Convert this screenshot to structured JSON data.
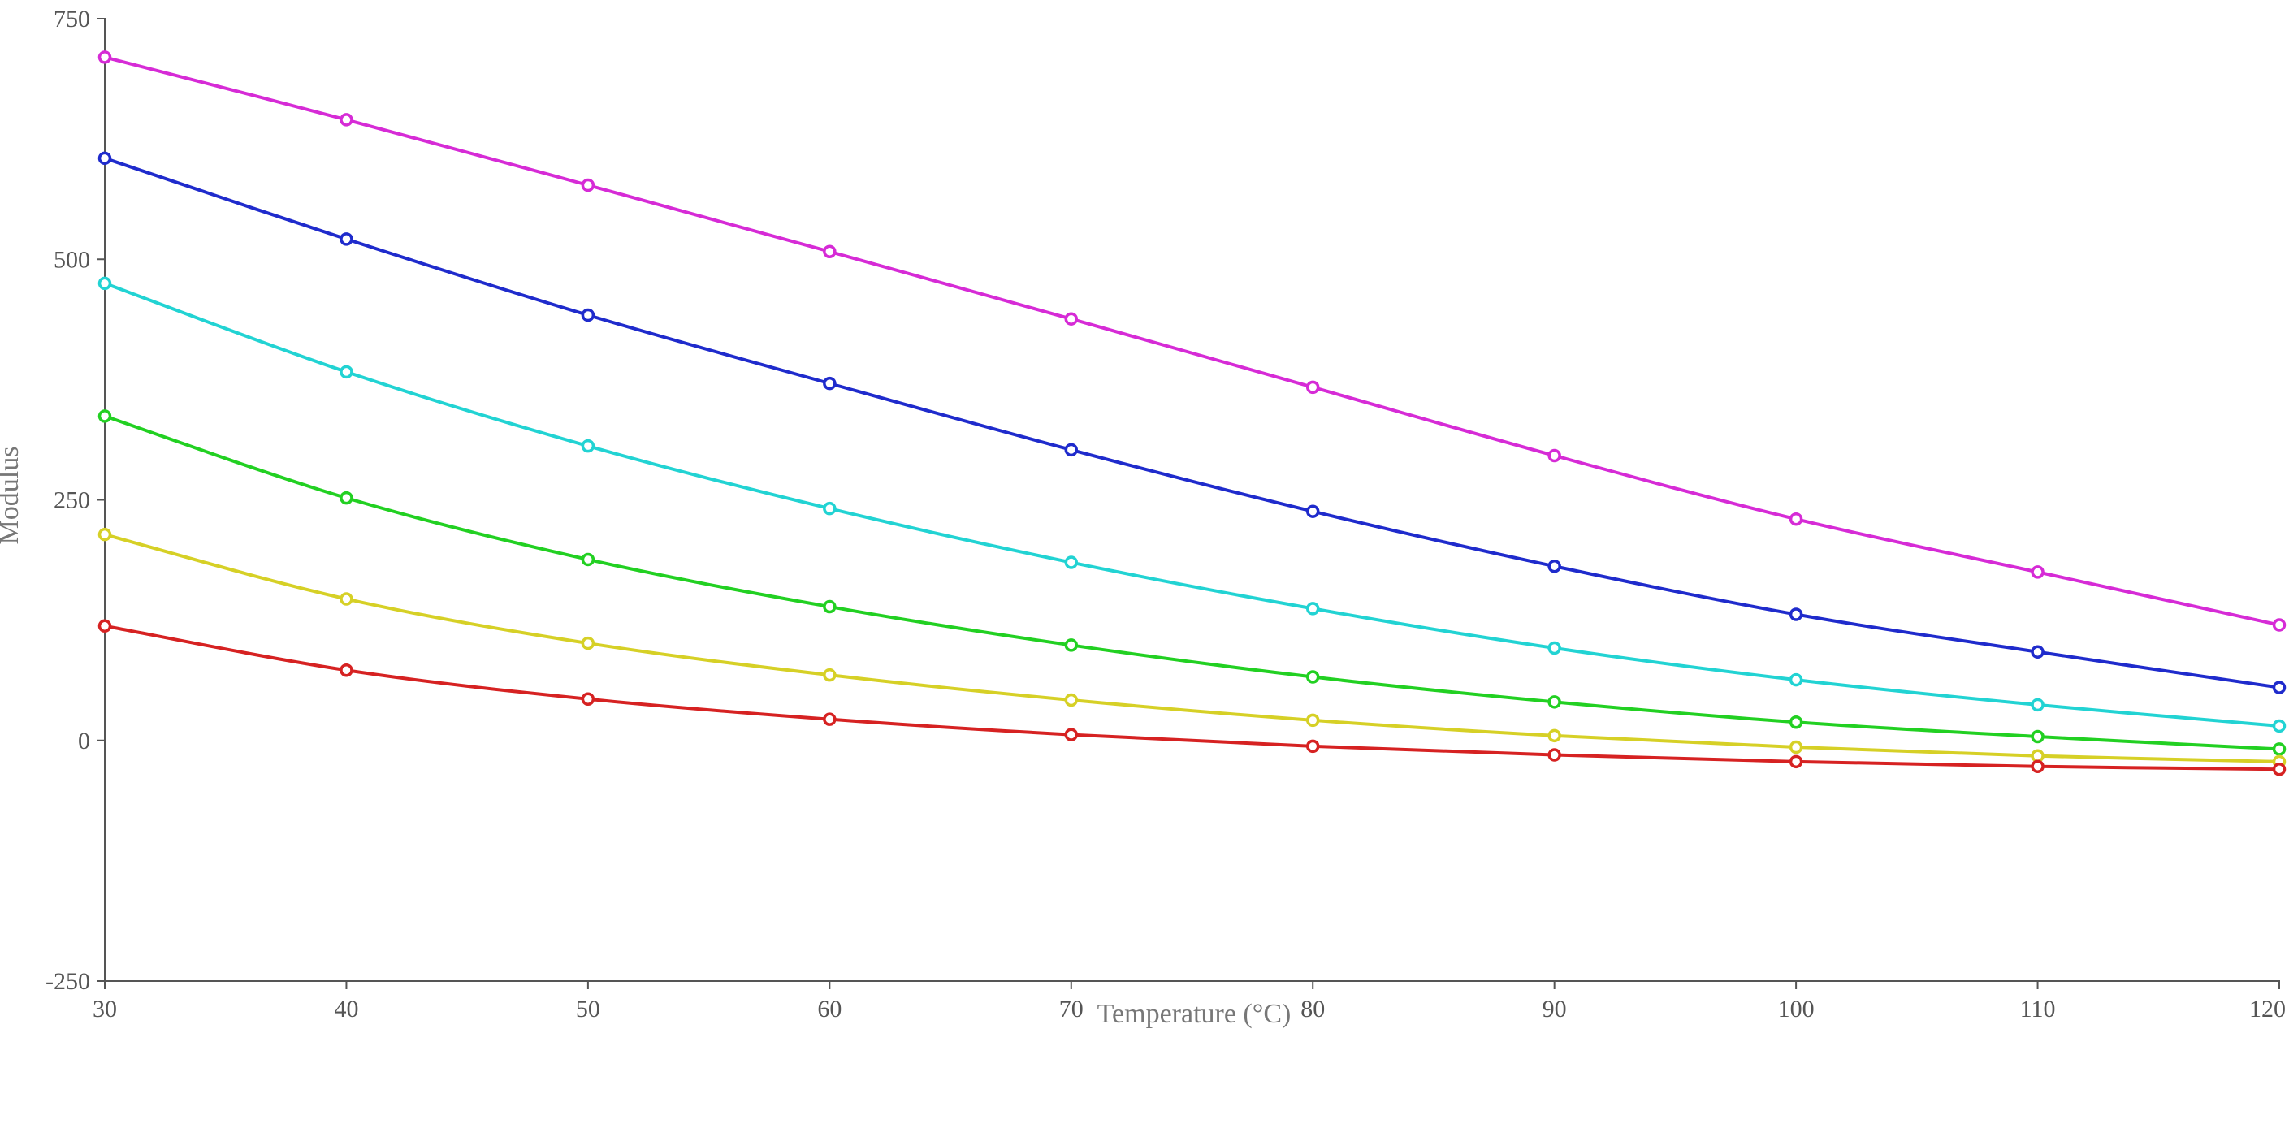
{
  "chart_data": {
    "type": "line",
    "title": "",
    "xlabel": "Temperature (°C)",
    "ylabel": "Modulus",
    "xlim": [
      30,
      120
    ],
    "ylim": [
      -250,
      750
    ],
    "x_ticks": [
      "30",
      "40",
      "50",
      "60",
      "70",
      "80",
      "90",
      "100",
      "110",
      "120"
    ],
    "y_ticks": [
      "750",
      "500",
      "250",
      "0",
      "-250"
    ],
    "x_tick_values": [
      30,
      40,
      50,
      60,
      70,
      80,
      90,
      100,
      110,
      120
    ],
    "y_tick_values": [
      750,
      500,
      250,
      0,
      -250
    ],
    "grid": false,
    "legend": "none",
    "x": [
      30,
      40,
      50,
      60,
      70,
      80,
      90,
      100,
      110,
      120
    ],
    "series": [
      {
        "color": "#d62bd6",
        "values": [
          710,
          645,
          577,
          508,
          438,
          367,
          296,
          230,
          175,
          120
        ]
      },
      {
        "color": "#1f2bcc",
        "values": [
          605,
          521,
          442,
          371,
          302,
          238,
          181,
          131,
          92,
          55
        ]
      },
      {
        "color": "#22d3d3",
        "values": [
          475,
          383,
          306,
          241,
          185,
          137,
          96,
          63,
          37,
          15
        ]
      },
      {
        "color": "#22d022",
        "values": [
          337,
          252,
          188,
          139,
          99,
          66,
          40,
          19,
          4,
          -9
        ]
      },
      {
        "color": "#d6d026",
        "values": [
          214,
          147,
          101,
          68,
          42,
          21,
          5,
          -7,
          -16,
          -22
        ]
      },
      {
        "color": "#d62222",
        "values": [
          119,
          73,
          43,
          22,
          6,
          -6,
          -15,
          -22,
          -27,
          -30
        ]
      }
    ]
  }
}
